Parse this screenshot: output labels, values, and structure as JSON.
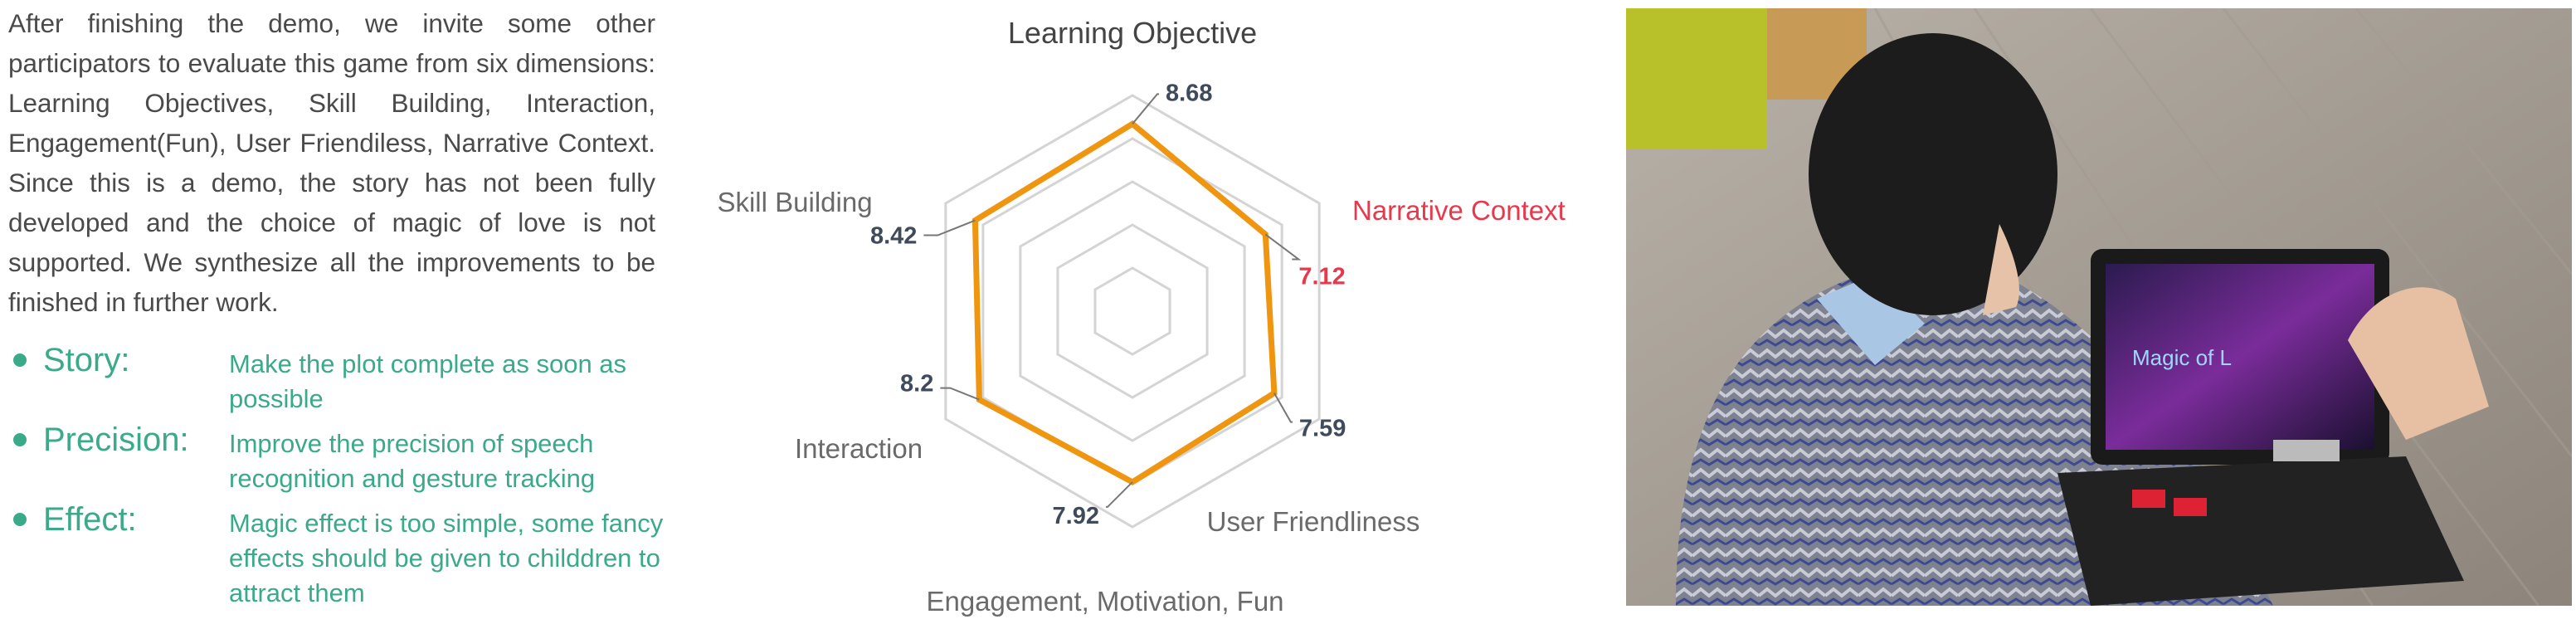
{
  "paragraph": "After finishing the demo, we invite some other participators to evaluate this game from six dimensions: Learning Objectives, Skill Building, Interaction, Engagement(Fun), User Friendiless, Narrative Context. Since this is a demo, the story has not been fully developed and the choice of magic of love is not supported. We synthesize all the improvements to be finished in further work.",
  "bullets": [
    {
      "head": "Story:",
      "desc": "Make the plot complete as soon as possible"
    },
    {
      "head": "Precision:",
      "desc": "Improve the precision of speech recognition and gesture tracking"
    },
    {
      "head": "Effect:",
      "desc": "Magic effect is too simple, some fancy effects should be given to childdren to attract them"
    }
  ],
  "colors": {
    "accent_green": "#3aaa8a",
    "series": "#f0950f",
    "highlight": "#e8384b",
    "grid": "#d4d4d4",
    "text": "#555555"
  },
  "chart_data": {
    "type": "radar",
    "axes": [
      "Learning Objective",
      "Narrative Context",
      "User Friendliness",
      "Engagement, Motivation, Fun",
      "Interaction",
      "Skill Building"
    ],
    "values": [
      8.68,
      7.12,
      7.59,
      7.92,
      8.2,
      8.42
    ],
    "value_labels": [
      "8.68",
      "7.12",
      "7.59",
      "7.92",
      "8.2",
      "8.42"
    ],
    "highlight_axis": "Narrative Context",
    "range": [
      0,
      10
    ],
    "rings": 5
  },
  "photo": {
    "screen_text": "Magic of L"
  }
}
